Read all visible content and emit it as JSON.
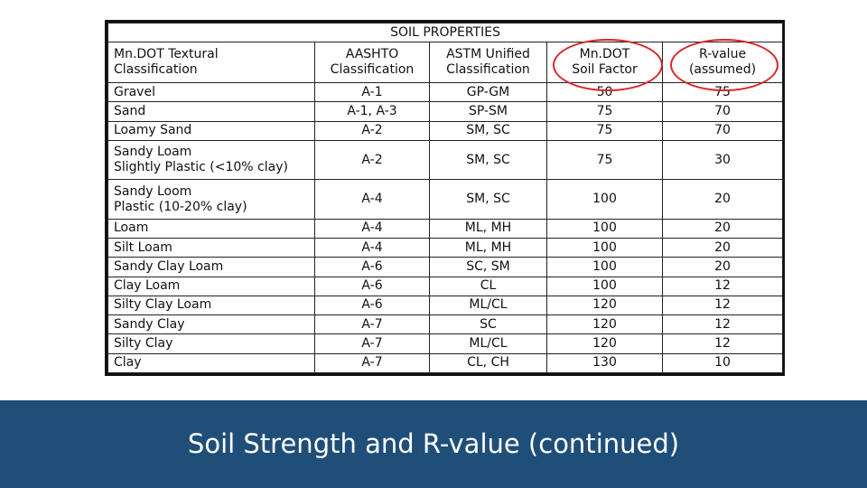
{
  "slide": {
    "title": "Soil Strength and R-value (continued)"
  },
  "table": {
    "title": "SOIL PROPERTIES",
    "headers": {
      "textural": [
        "Mn.DOT Textural",
        "Classification"
      ],
      "aashto": [
        "AASHTO",
        "Classification"
      ],
      "astm": [
        "ASTM Unified",
        "Classification"
      ],
      "soil_factor": [
        "Mn.DOT",
        "Soil Factor"
      ],
      "r_value": [
        "R-value",
        "(assumed)"
      ]
    },
    "rows": [
      {
        "texture": [
          "Gravel"
        ],
        "aashto": "A-1",
        "astm": "GP-GM",
        "soil_factor": "50",
        "r_value": "75"
      },
      {
        "texture": [
          "Sand"
        ],
        "aashto": "A-1, A-3",
        "astm": "SP-SM",
        "soil_factor": "75",
        "r_value": "70"
      },
      {
        "texture": [
          "Loamy Sand"
        ],
        "aashto": "A-2",
        "astm": "SM, SC",
        "soil_factor": "75",
        "r_value": "70"
      },
      {
        "texture": [
          "Sandy Loam",
          "Slightly Plastic (<10% clay)"
        ],
        "aashto": "A-2",
        "astm": "SM, SC",
        "soil_factor": "75",
        "r_value": "30"
      },
      {
        "texture": [
          "Sandy Loom",
          "Plastic (10-20% clay)"
        ],
        "aashto": "A-4",
        "astm": "SM, SC",
        "soil_factor": "100",
        "r_value": "20"
      },
      {
        "texture": [
          "Loam"
        ],
        "aashto": "A-4",
        "astm": "ML, MH",
        "soil_factor": "100",
        "r_value": "20"
      },
      {
        "texture": [
          "Silt Loam"
        ],
        "aashto": "A-4",
        "astm": "ML, MH",
        "soil_factor": "100",
        "r_value": "20"
      },
      {
        "texture": [
          "Sandy Clay Loam"
        ],
        "aashto": "A-6",
        "astm": "SC, SM",
        "soil_factor": "100",
        "r_value": "20"
      },
      {
        "texture": [
          "Clay Loam"
        ],
        "aashto": "A-6",
        "astm": "CL",
        "soil_factor": "100",
        "r_value": "12"
      },
      {
        "texture": [
          "Silty Clay Loam"
        ],
        "aashto": "A-6",
        "astm": "ML/CL",
        "soil_factor": "120",
        "r_value": "12"
      },
      {
        "texture": [
          "Sandy Clay"
        ],
        "aashto": "A-7",
        "astm": "SC",
        "soil_factor": "120",
        "r_value": "12"
      },
      {
        "texture": [
          "Silty Clay"
        ],
        "aashto": "A-7",
        "astm": "ML/CL",
        "soil_factor": "120",
        "r_value": "12"
      },
      {
        "texture": [
          "Clay"
        ],
        "aashto": "A-7",
        "astm": "CL, CH",
        "soil_factor": "130",
        "r_value": "10"
      }
    ]
  },
  "colors": {
    "title_band": "#1f4e79",
    "highlight": "#d9252a"
  }
}
